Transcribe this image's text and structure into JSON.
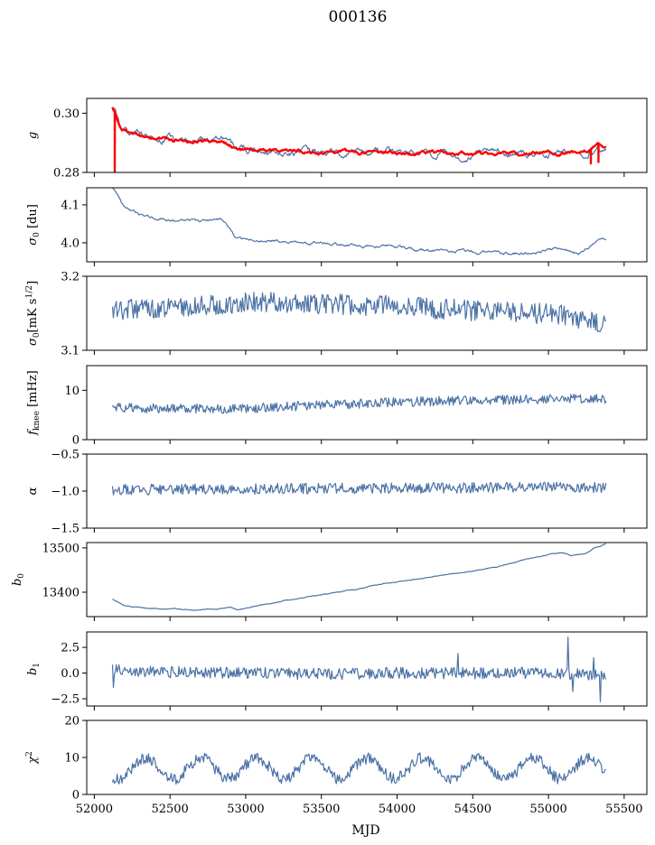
{
  "figure": {
    "title": "000136",
    "xlabel": "MJD",
    "colors": {
      "series": "#4c72a6",
      "fit": "#ff0000"
    }
  },
  "chart_data": [
    {
      "type": "line",
      "ylabel": "g",
      "xlim": [
        51950,
        55650
      ],
      "ylim": [
        0.28,
        0.305
      ],
      "yticks": [
        0.28,
        0.3
      ],
      "ytick_labels": [
        "0.28",
        "0.30"
      ],
      "xticks": [
        52000,
        52500,
        53000,
        53500,
        54000,
        54500,
        55000,
        55500
      ],
      "series": [
        {
          "name": "",
          "color": "#4c72a6",
          "gen": {
            "kind": "g",
            "x0": 52120,
            "x1": 55380,
            "noise": 0.0008,
            "seed": 1
          },
          "keypoints": [
            [
              52120,
              0.302
            ],
            [
              52180,
              0.2945
            ],
            [
              52300,
              0.2918
            ],
            [
              52500,
              0.2912
            ],
            [
              52650,
              0.2905
            ],
            [
              52850,
              0.2908
            ],
            [
              52950,
              0.2878
            ],
            [
              53200,
              0.2877
            ],
            [
              53500,
              0.2872
            ],
            [
              53700,
              0.2867
            ],
            [
              53900,
              0.2871
            ],
            [
              54100,
              0.2864
            ],
            [
              54300,
              0.2868
            ],
            [
              54500,
              0.2862
            ],
            [
              54700,
              0.287
            ],
            [
              54900,
              0.2862
            ],
            [
              55000,
              0.2866
            ],
            [
              55150,
              0.2872
            ],
            [
              55250,
              0.287
            ],
            [
              55330,
              0.2895
            ],
            [
              55380,
              0.2885
            ]
          ]
        },
        {
          "name": "",
          "color": "#ff0000",
          "gen": {
            "kind": "g",
            "x0": 52120,
            "x1": 55380,
            "noise": 0.0004,
            "seed": 2
          },
          "keypoints": [
            [
              52120,
              0.302
            ],
            [
              52180,
              0.2945
            ],
            [
              52300,
              0.2918
            ],
            [
              52500,
              0.2912
            ],
            [
              52650,
              0.2905
            ],
            [
              52850,
              0.2908
            ],
            [
              52950,
              0.2878
            ],
            [
              53200,
              0.2877
            ],
            [
              53500,
              0.2872
            ],
            [
              53700,
              0.2867
            ],
            [
              53900,
              0.2871
            ],
            [
              54100,
              0.2864
            ],
            [
              54300,
              0.2868
            ],
            [
              54500,
              0.2862
            ],
            [
              54700,
              0.287
            ],
            [
              54900,
              0.2862
            ],
            [
              55000,
              0.2866
            ],
            [
              55150,
              0.2872
            ],
            [
              55250,
              0.287
            ],
            [
              55330,
              0.2895
            ],
            [
              55380,
              0.2885
            ]
          ],
          "dips": [
            [
              52135,
              0.28
            ],
            [
              55280,
              0.283
            ],
            [
              55330,
              0.2835
            ]
          ]
        }
      ]
    },
    {
      "type": "line",
      "ylabel": "σ0 [du]",
      "xlim": [
        51950,
        55650
      ],
      "ylim": [
        3.95,
        4.145
      ],
      "yticks": [
        4.0,
        4.1
      ],
      "ytick_labels": [
        "4.0",
        "4.1"
      ],
      "xticks": [
        52000,
        52500,
        53000,
        53500,
        54000,
        54500,
        55000,
        55500
      ],
      "series": [
        {
          "name": "",
          "color": "#4c72a6",
          "gen": {
            "kind": "walk",
            "x0": 52120,
            "x1": 55380,
            "noise": 0.003,
            "seed": 3
          },
          "keypoints": [
            [
              52120,
              4.145
            ],
            [
              52200,
              4.09
            ],
            [
              52300,
              4.07
            ],
            [
              52500,
              4.062
            ],
            [
              52700,
              4.055
            ],
            [
              52850,
              4.058
            ],
            [
              52950,
              4.01
            ],
            [
              53200,
              4.008
            ],
            [
              53500,
              3.998
            ],
            [
              53800,
              3.992
            ],
            [
              54000,
              3.985
            ],
            [
              54300,
              3.978
            ],
            [
              54600,
              3.975
            ],
            [
              54900,
              3.972
            ],
            [
              55000,
              3.978
            ],
            [
              55100,
              3.984
            ],
            [
              55200,
              3.968
            ],
            [
              55300,
              3.995
            ],
            [
              55380,
              4.01
            ]
          ]
        }
      ]
    },
    {
      "type": "line",
      "ylabel": "σ0[mK s^1/2]",
      "xlim": [
        51950,
        55650
      ],
      "ylim": [
        3.1,
        3.2
      ],
      "yticks": [
        3.1,
        3.2
      ],
      "ytick_labels": [
        "3.1",
        "3.2"
      ],
      "xticks": [
        52000,
        52500,
        53000,
        53500,
        54000,
        54500,
        55000,
        55500
      ],
      "series": [
        {
          "name": "",
          "color": "#4c72a6",
          "gen": {
            "kind": "noise",
            "x0": 52120,
            "x1": 55380,
            "noise": 0.009,
            "seed": 4
          },
          "keypoints": [
            [
              52120,
              3.154
            ],
            [
              52400,
              3.158
            ],
            [
              52800,
              3.162
            ],
            [
              53200,
              3.165
            ],
            [
              53600,
              3.162
            ],
            [
              54000,
              3.16
            ],
            [
              54400,
              3.155
            ],
            [
              54800,
              3.15
            ],
            [
              55100,
              3.148
            ],
            [
              55380,
              3.136
            ]
          ]
        }
      ]
    },
    {
      "type": "line",
      "ylabel": "fknee [mHz]",
      "xlim": [
        51950,
        55650
      ],
      "ylim": [
        0,
        15
      ],
      "yticks": [
        0,
        10
      ],
      "ytick_labels": [
        "0",
        "10"
      ],
      "xticks": [
        52000,
        52500,
        53000,
        53500,
        54000,
        54500,
        55000,
        55500
      ],
      "series": [
        {
          "name": "",
          "color": "#4c72a6",
          "gen": {
            "kind": "noise",
            "x0": 52120,
            "x1": 55380,
            "noise": 0.6,
            "seed": 5
          },
          "keypoints": [
            [
              52120,
              6.5
            ],
            [
              52500,
              6.2
            ],
            [
              53000,
              6.3
            ],
            [
              53500,
              7.0
            ],
            [
              54000,
              7.6
            ],
            [
              54500,
              8.0
            ],
            [
              55000,
              8.2
            ],
            [
              55380,
              8.3
            ]
          ]
        }
      ]
    },
    {
      "type": "line",
      "ylabel": "α",
      "xlim": [
        51950,
        55650
      ],
      "ylim": [
        -1.5,
        -0.5
      ],
      "yticks": [
        -1.5,
        -1.0,
        -0.5
      ],
      "ytick_labels": [
        "−1.5",
        "−1.0",
        "−0.5"
      ],
      "xticks": [
        52000,
        52500,
        53000,
        53500,
        54000,
        54500,
        55000,
        55500
      ],
      "series": [
        {
          "name": "",
          "color": "#4c72a6",
          "gen": {
            "kind": "noise",
            "x0": 52120,
            "x1": 55380,
            "noise": 0.045,
            "seed": 6
          },
          "keypoints": [
            [
              52120,
              -0.98
            ],
            [
              53000,
              -0.97
            ],
            [
              54000,
              -0.96
            ],
            [
              55000,
              -0.95
            ],
            [
              55380,
              -0.95
            ]
          ]
        }
      ]
    },
    {
      "type": "line",
      "ylabel": "b0",
      "xlim": [
        51950,
        55650
      ],
      "ylim": [
        13345,
        13512
      ],
      "yticks": [
        13400,
        13500
      ],
      "ytick_labels": [
        "13400",
        "13500"
      ],
      "xticks": [
        52000,
        52500,
        53000,
        53500,
        54000,
        54500,
        55000,
        55500
      ],
      "series": [
        {
          "name": "",
          "color": "#4c72a6",
          "gen": {
            "kind": "walk",
            "x0": 52120,
            "x1": 55380,
            "noise": 0.6,
            "seed": 7
          },
          "keypoints": [
            [
              52120,
              13384
            ],
            [
              52200,
              13370
            ],
            [
              52350,
              13364
            ],
            [
              52500,
              13363
            ],
            [
              52650,
              13360
            ],
            [
              52800,
              13362
            ],
            [
              52900,
              13366
            ],
            [
              52950,
              13360
            ],
            [
              53100,
              13372
            ],
            [
              53300,
              13383
            ],
            [
              53500,
              13395
            ],
            [
              53700,
              13405
            ],
            [
              53900,
              13418
            ],
            [
              54100,
              13428
            ],
            [
              54300,
              13438
            ],
            [
              54500,
              13448
            ],
            [
              54700,
              13460
            ],
            [
              54900,
              13478
            ],
            [
              55000,
              13485
            ],
            [
              55100,
              13490
            ],
            [
              55150,
              13482
            ],
            [
              55250,
              13487
            ],
            [
              55300,
              13500
            ],
            [
              55380,
              13509
            ]
          ]
        }
      ]
    },
    {
      "type": "line",
      "ylabel": "b1",
      "xlim": [
        51950,
        55650
      ],
      "ylim": [
        -3.2,
        4.0
      ],
      "yticks": [
        -2.5,
        0.0,
        2.5
      ],
      "ytick_labels": [
        "−2.5",
        "0.0",
        "2.5"
      ],
      "xticks": [
        52000,
        52500,
        53000,
        53500,
        54000,
        54500,
        55000,
        55500
      ],
      "series": [
        {
          "name": "",
          "color": "#4c72a6",
          "gen": {
            "kind": "noise",
            "x0": 52120,
            "x1": 55380,
            "noise": 0.35,
            "seed": 8
          },
          "keypoints": [
            [
              52120,
              0.3
            ],
            [
              52500,
              0.1
            ],
            [
              53000,
              0.0
            ],
            [
              53500,
              -0.1
            ],
            [
              54000,
              0.0
            ],
            [
              54500,
              0.0
            ],
            [
              55000,
              0.0
            ],
            [
              55380,
              -0.2
            ]
          ],
          "spikes": [
            [
              52125,
              -1.4
            ],
            [
              54400,
              1.9
            ],
            [
              55130,
              3.5
            ],
            [
              55160,
              -1.8
            ],
            [
              55340,
              -2.8
            ],
            [
              55300,
              1.5
            ]
          ]
        }
      ]
    },
    {
      "type": "line",
      "ylabel": "χ^2",
      "xlim": [
        51950,
        55650
      ],
      "ylim": [
        0,
        20
      ],
      "yticks": [
        0,
        10,
        20
      ],
      "ytick_labels": [
        "0",
        "10",
        "20"
      ],
      "xticks": [
        52000,
        52500,
        53000,
        53500,
        54000,
        54500,
        55000,
        55500
      ],
      "xtick_labels": [
        "52000",
        "52500",
        "53000",
        "53500",
        "54000",
        "54500",
        "55000",
        "55500"
      ],
      "series": [
        {
          "name": "",
          "color": "#4c72a6",
          "gen": {
            "kind": "seasonal",
            "x0": 52120,
            "x1": 55380,
            "noise": 1.0,
            "seed": 9,
            "mean": 7.0,
            "amp": 2.8,
            "period": 365.25,
            "phase": 52250
          }
        }
      ]
    }
  ]
}
